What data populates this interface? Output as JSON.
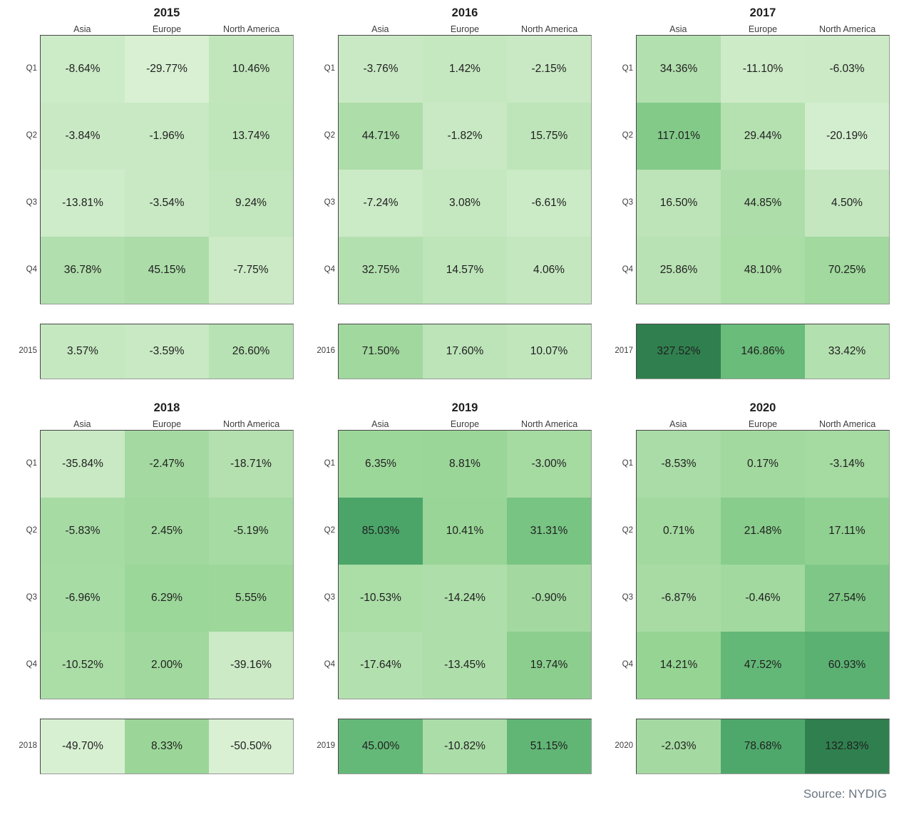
{
  "page": {
    "source_note": "Source: NYDIG"
  },
  "chart_data": {
    "type": "heatmap",
    "columns": [
      "Asia",
      "Europe",
      "North America"
    ],
    "quarter_labels": [
      "Q1",
      "Q2",
      "Q3",
      "Q4"
    ],
    "value_unit": "percent",
    "value_decimals": 2,
    "tables": [
      {
        "year": "2015",
        "norm_group": 0,
        "quarterly": [
          [
            -8.64,
            -29.77,
            10.46
          ],
          [
            -3.84,
            -1.96,
            13.74
          ],
          [
            -13.81,
            -3.54,
            9.24
          ],
          [
            36.78,
            45.15,
            -7.75
          ]
        ],
        "yearly": [
          3.57,
          -3.59,
          26.6
        ]
      },
      {
        "year": "2016",
        "norm_group": 0,
        "quarterly": [
          [
            -3.76,
            1.42,
            -2.15
          ],
          [
            44.71,
            -1.82,
            15.75
          ],
          [
            -7.24,
            3.08,
            -6.61
          ],
          [
            32.75,
            14.57,
            4.06
          ]
        ],
        "yearly": [
          71.5,
          17.6,
          10.07
        ]
      },
      {
        "year": "2017",
        "norm_group": 0,
        "quarterly": [
          [
            34.36,
            -11.1,
            -6.03
          ],
          [
            117.01,
            29.44,
            -20.19
          ],
          [
            16.5,
            44.85,
            4.5
          ],
          [
            25.86,
            48.1,
            70.25
          ]
        ],
        "yearly": [
          327.52,
          146.86,
          33.42
        ]
      },
      {
        "year": "2018",
        "norm_group": 1,
        "quarterly": [
          [
            -35.84,
            -2.47,
            -18.71
          ],
          [
            -5.83,
            2.45,
            -5.19
          ],
          [
            -6.96,
            6.29,
            5.55
          ],
          [
            -10.52,
            2.0,
            -39.16
          ]
        ],
        "yearly": [
          -49.7,
          8.33,
          -50.5
        ]
      },
      {
        "year": "2019",
        "norm_group": 1,
        "quarterly": [
          [
            6.35,
            8.81,
            -3.0
          ],
          [
            85.03,
            10.41,
            31.31
          ],
          [
            -10.53,
            -14.24,
            -0.9
          ],
          [
            -17.64,
            -13.45,
            19.74
          ]
        ],
        "yearly": [
          45.0,
          -10.82,
          51.15
        ]
      },
      {
        "year": "2020",
        "norm_group": 1,
        "quarterly": [
          [
            -8.53,
            0.17,
            -3.14
          ],
          [
            0.71,
            21.48,
            17.11
          ],
          [
            -6.87,
            -0.46,
            27.54
          ],
          [
            14.21,
            47.52,
            60.93
          ]
        ],
        "yearly": [
          -2.03,
          78.68,
          132.83
        ]
      }
    ],
    "color_scale": {
      "groups": [
        {
          "vmin": -29.77,
          "vmax": 327.52
        },
        {
          "vmin": -50.5,
          "vmax": 132.83
        }
      ],
      "stops": [
        [
          0.0,
          "#d9f0d3"
        ],
        [
          0.2,
          "#aedeaa"
        ],
        [
          0.35,
          "#96d494"
        ],
        [
          0.5,
          "#68bb79"
        ],
        [
          0.75,
          "#4aa468"
        ],
        [
          1.0,
          "#30804f"
        ]
      ]
    },
    "text_colors": {
      "cell": "#1f1f1f",
      "labels": "#3c3c3c",
      "source": "#6a7680"
    }
  }
}
